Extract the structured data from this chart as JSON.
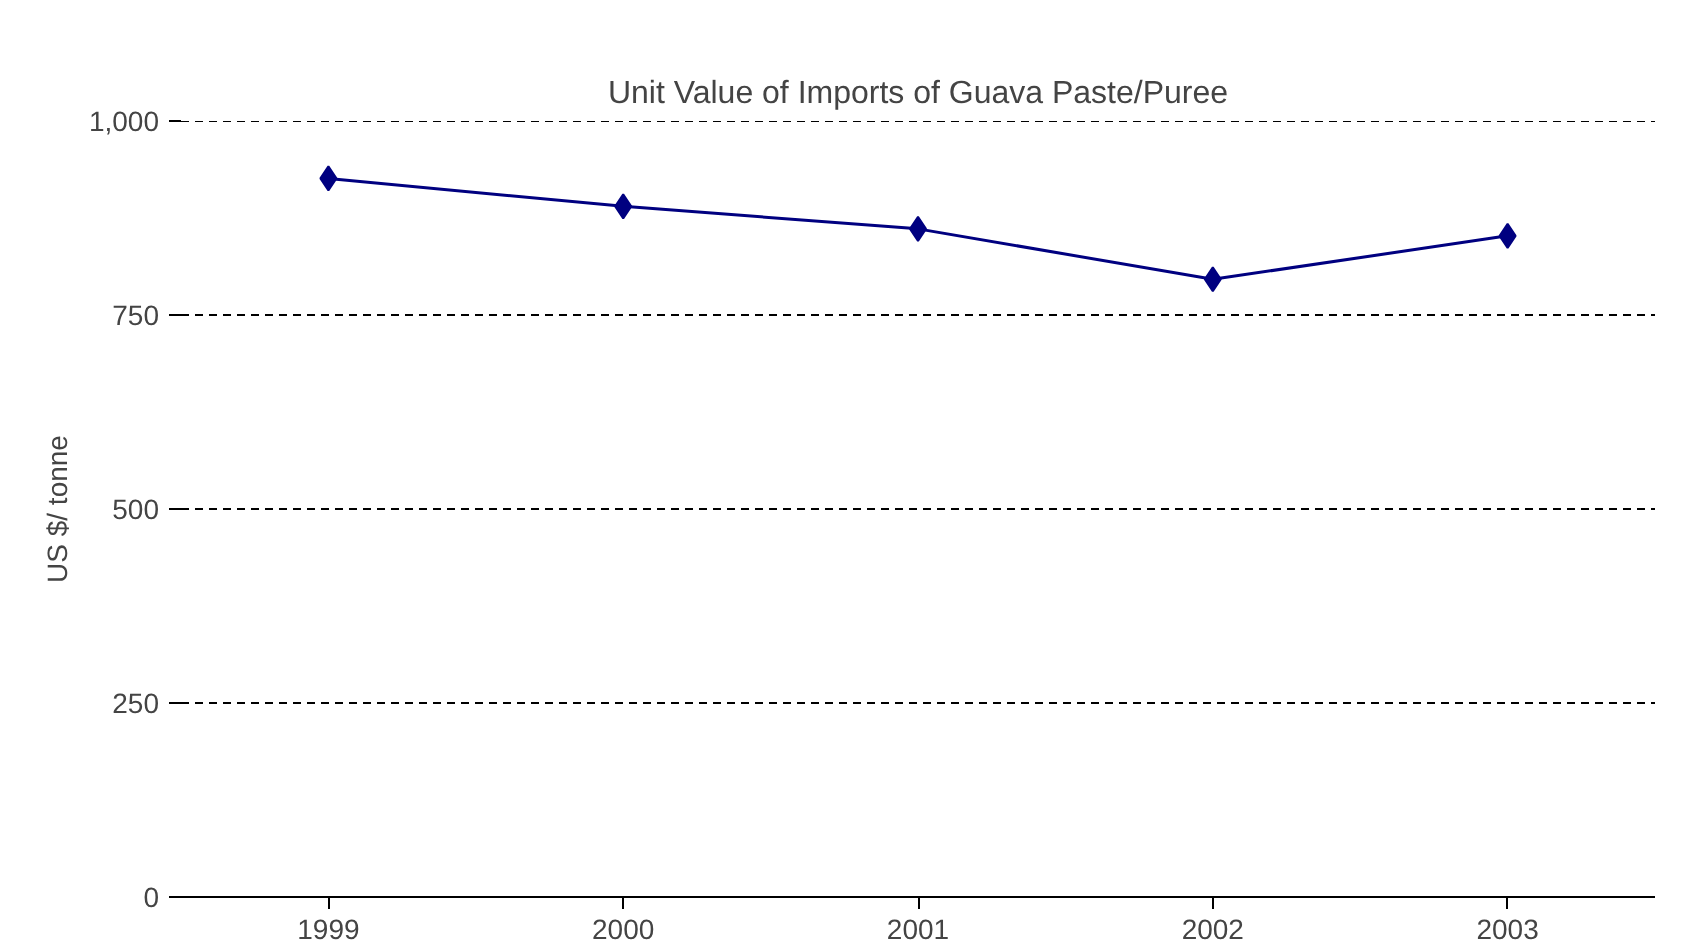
{
  "chart_data": {
    "type": "line",
    "title": "Unit Value of Imports of Guava Paste/Puree",
    "ylabel": "US $/ tonne",
    "categories": [
      "1999",
      "2000",
      "2001",
      "2002",
      "2003"
    ],
    "series": [
      {
        "color": "#000080",
        "values": [
          926,
          890,
          861,
          796,
          852
        ]
      }
    ],
    "ylim": [
      0,
      1000
    ],
    "yticks": [
      0,
      250,
      500,
      750,
      {
        "value": 1000,
        "label": "1,000"
      }
    ],
    "grid": "y",
    "marker": "diamond",
    "line_style": "solid"
  }
}
